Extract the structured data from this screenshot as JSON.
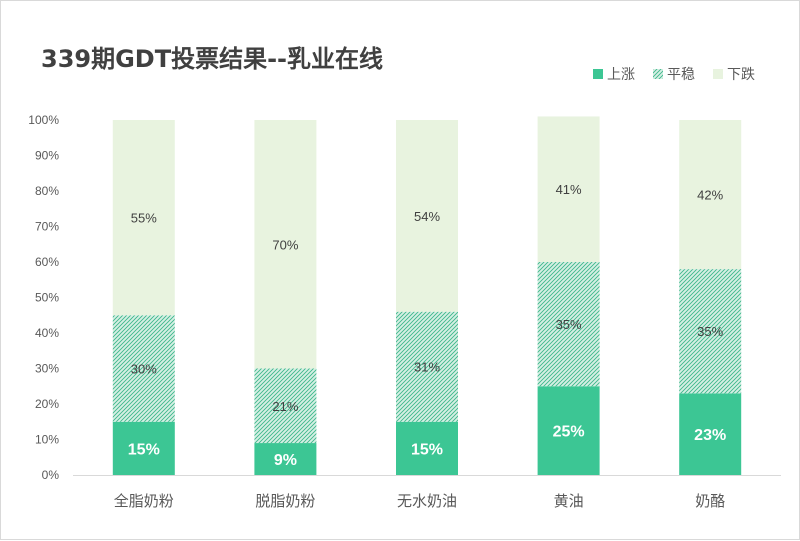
{
  "chart_data": {
    "type": "bar",
    "stacked": true,
    "percent": true,
    "title": "339期GDT投票结果--乳业在线",
    "categories": [
      "全脂奶粉",
      "脱脂奶粉",
      "无水奶油",
      "黄油",
      "奶酪"
    ],
    "series": [
      {
        "name": "上涨",
        "values": [
          15,
          9,
          15,
          25,
          23
        ],
        "labels": [
          "15%",
          "9%",
          "15%",
          "25%",
          "23%"
        ],
        "color": "#3cc694",
        "pattern": "solid"
      },
      {
        "name": "平稳",
        "values": [
          30,
          21,
          31,
          35,
          35
        ],
        "labels": [
          "30%",
          "21%",
          "31%",
          "35%",
          "35%"
        ],
        "color": "#3cc694",
        "pattern": "hatched"
      },
      {
        "name": "下跌",
        "values": [
          55,
          70,
          54,
          41,
          42
        ],
        "labels": [
          "55%",
          "70%",
          "54%",
          "41%",
          "42%"
        ],
        "color": "#e8f3df",
        "pattern": "solid"
      }
    ],
    "yticks": [
      "0%",
      "10%",
      "20%",
      "30%",
      "40%",
      "50%",
      "60%",
      "70%",
      "80%",
      "90%",
      "100%"
    ],
    "ylim": [
      0,
      100
    ],
    "legend_position": "top-right",
    "grid": false
  }
}
